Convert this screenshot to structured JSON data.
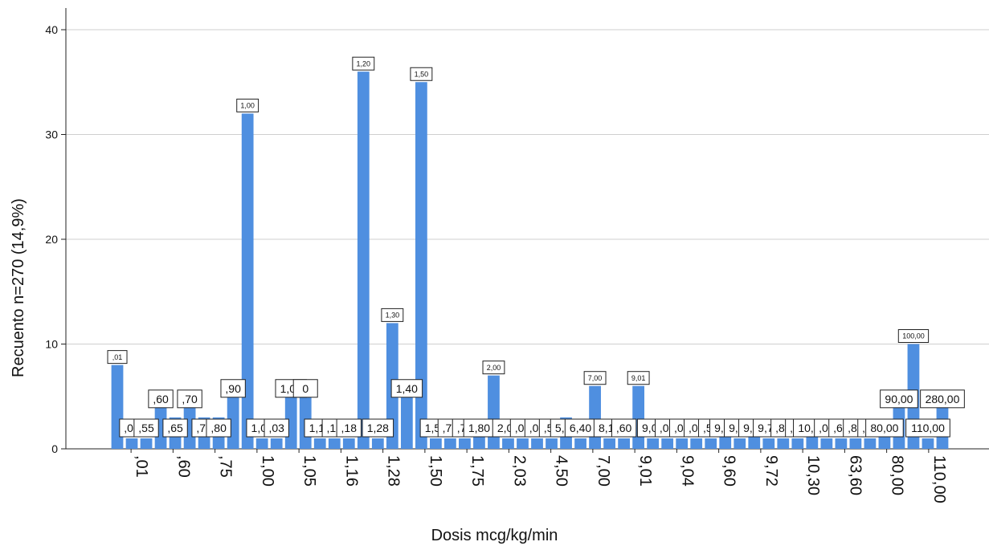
{
  "chart_data": {
    "type": "bar",
    "xlabel": "Dosis mcg/kg/min",
    "ylabel": "Recuento n=270 (14,9%)",
    "ylim": [
      0,
      40
    ],
    "y_ticks": [
      "0",
      "10",
      "20",
      "30",
      "40"
    ],
    "grid": true,
    "color": "#4f8fe0",
    "x_tick_labels": [
      ",01",
      ",60",
      ",75",
      "1,00",
      "1,05",
      "1,16",
      "1,28",
      "1,50",
      "1,75",
      "2,03",
      "4,50",
      "7,00",
      "9,01",
      "9,04",
      "9,60",
      "9,72",
      "10,30",
      "63,60",
      "80,00",
      "110,00"
    ],
    "categories": [
      ",01",
      ",02",
      ",55",
      ",60",
      ",65",
      ",70",
      ",75",
      ",80",
      ",90",
      "1,00",
      "1,02",
      "1,03",
      "1,05",
      "1,10",
      "1,12",
      "1,16",
      "1,18",
      "1,20",
      "1,28",
      "1,30",
      "1,40",
      "1,50",
      "1,55",
      "1,70",
      "1,75",
      "1,80",
      "2,00",
      "2,03",
      "3,00",
      "4,00",
      "4,50",
      "5,00",
      "6,40",
      "7,00",
      "8,15",
      "8,60",
      "9,01",
      "9,02",
      "9,03",
      "9,04",
      "9,05",
      "9,52",
      "9,60",
      "9,65",
      "9,70",
      "9,72",
      "9,80",
      "10,20",
      "10,30",
      "14,00",
      "63,60",
      "63,80",
      "70,00",
      "80,00",
      "90,00",
      "100,00",
      "110,00",
      "280,00"
    ],
    "values": [
      8,
      1,
      1,
      4,
      3,
      4,
      3,
      3,
      5,
      32,
      1,
      1,
      5,
      5,
      1,
      1,
      1,
      36,
      1,
      12,
      5,
      35,
      1,
      1,
      1,
      2,
      7,
      1,
      1,
      1,
      1,
      3,
      1,
      6,
      1,
      1,
      6,
      1,
      1,
      1,
      1,
      1,
      2,
      1,
      2,
      1,
      1,
      1,
      2,
      1,
      1,
      1,
      1,
      2,
      4,
      10,
      1,
      4
    ],
    "data_labels": [
      ",01",
      ",02",
      ",55",
      ",60",
      ",65",
      ",70",
      ",75",
      ",80",
      ",90",
      "1,00",
      "1,02",
      ",03",
      "1,05",
      "0",
      "1,12",
      ",16",
      ",18",
      "1,20",
      "1,28",
      "1,30",
      "1,40",
      "1,50",
      "1,55",
      ",70",
      ",75",
      "1,80",
      "2,00",
      "2,03",
      ",00",
      ",00",
      ",50",
      "5,00",
      "6,40",
      "7,00",
      "8,15",
      ",60",
      "9,01",
      "9,02",
      ",03",
      ",04",
      ",05",
      ",52",
      "9,60",
      "9,65",
      "9,70",
      "9,72",
      ",80",
      ",20",
      "10,30",
      ",00",
      ",60",
      ",80",
      ",00",
      "80,00",
      "90,00",
      "100,00",
      "110,00",
      "280,00"
    ]
  }
}
